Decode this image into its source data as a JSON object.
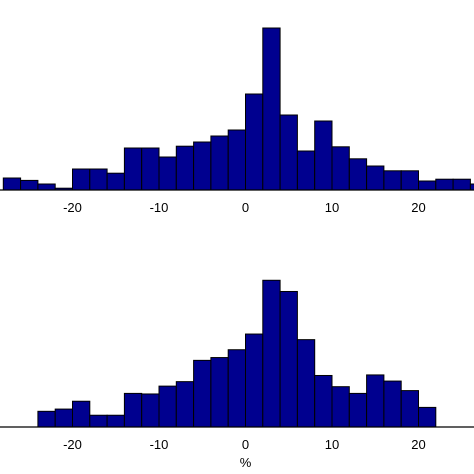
{
  "chart_data": [
    {
      "type": "bar",
      "title": "",
      "xlabel": "",
      "ylabel": "",
      "bin_width": 2,
      "xlim": [
        -28,
        28
      ],
      "ylim": [
        0,
        28
      ],
      "xticks": [
        -20,
        -10,
        0,
        10,
        20
      ],
      "tick_labels": [
        "-20",
        "-10",
        "0",
        "10",
        "20"
      ],
      "bar_color": "#00008f",
      "edge_color": "#000000",
      "grid": false,
      "x": [
        -27,
        -25,
        -23,
        -21,
        -19,
        -17,
        -15,
        -13,
        -11,
        -9,
        -7,
        -5,
        -3,
        -1,
        1,
        3,
        5,
        7,
        9,
        11,
        13,
        15,
        17,
        19,
        21,
        23,
        25,
        27
      ],
      "values": [
        2,
        1.6,
        1,
        0.3,
        3.5,
        3.5,
        2.8,
        7,
        7,
        5.5,
        7.3,
        8,
        9,
        10,
        16,
        27,
        12.5,
        6.5,
        11.5,
        7.2,
        5.2,
        4,
        3.2,
        3.2,
        1.5,
        1.8,
        1.8,
        1
      ]
    },
    {
      "type": "bar",
      "title": "",
      "xlabel": "%",
      "ylabel": "",
      "bin_width": 2,
      "xlim": [
        -28,
        28
      ],
      "ylim": [
        0,
        28
      ],
      "xticks": [
        -20,
        -10,
        0,
        10,
        20
      ],
      "tick_labels": [
        "-20",
        "-10",
        "0",
        "10",
        "20"
      ],
      "bar_color": "#00008f",
      "edge_color": "#000000",
      "grid": false,
      "x": [
        -23,
        -21,
        -19,
        -17,
        -15,
        -13,
        -11,
        -9,
        -7,
        -5,
        -3,
        -1,
        1,
        3,
        5,
        7,
        9,
        11,
        13,
        15,
        17,
        19,
        21
      ],
      "values": [
        2.8,
        3.2,
        4.6,
        2.1,
        2.1,
        6,
        5.9,
        7.3,
        8.1,
        11.9,
        12.4,
        13.8,
        16.6,
        26.2,
        24.2,
        15.6,
        9.2,
        7.2,
        6,
        9.3,
        8.2,
        6.5,
        3.5
      ]
    }
  ]
}
